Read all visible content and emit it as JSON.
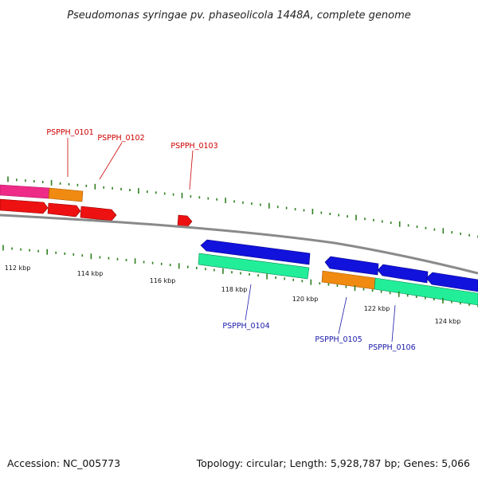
{
  "title": "Pseudomonas syringae pv. phaseolicola 1448A, complete genome",
  "footer": {
    "accession": "Accession: NC_005773",
    "summary": "Topology: circular; Length: 5,928,787 bp; Genes: 5,066"
  },
  "colors": {
    "backbone": "#8a8a8a",
    "tick": "#2f7f1f",
    "pink": "#ee2b86",
    "orange": "#f08a10",
    "red": "#ee1111",
    "blue": "#1212dd",
    "teal": "#22ee99",
    "label_red": "#cc0000",
    "label_blue": "#1a1aaa"
  },
  "axis_labels": [
    "112 kbp",
    "114 kbp",
    "116 kbp",
    "118 kbp",
    "120 kbp",
    "122 kbp",
    "124 kbp"
  ],
  "gene_labels": [
    "PSPPH_0101",
    "PSPPH_0102",
    "PSPPH_0103",
    "PSPPH_0104",
    "PSPPH_0105",
    "PSPPH_0106"
  ]
}
